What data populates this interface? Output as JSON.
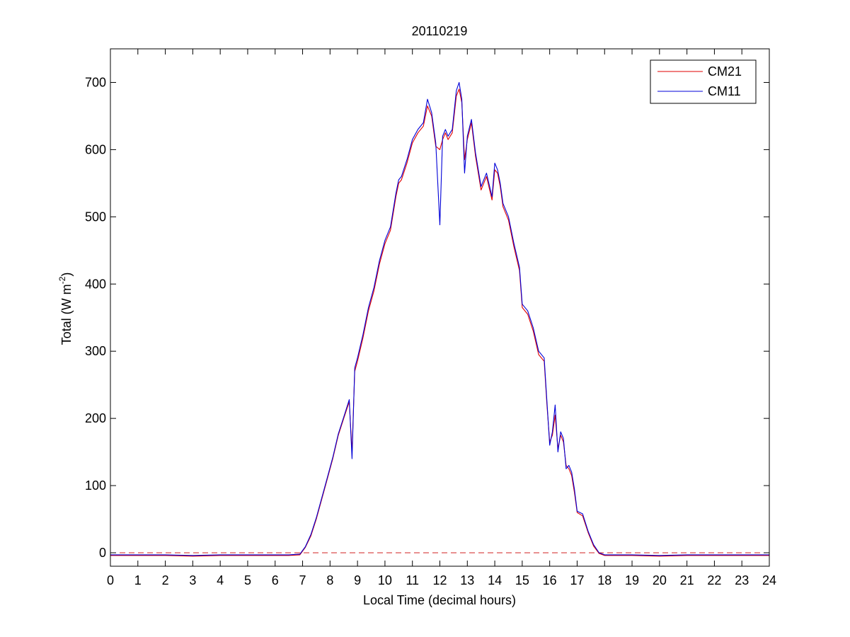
{
  "chart_data": {
    "type": "line",
    "title": "20110219",
    "xlabel": "Local Time (decimal hours)",
    "ylabel": "Total (W m^-2)",
    "ylabel_parts": {
      "main": "Total (W m",
      "exponent": "-2",
      "close": ")"
    },
    "xlim": [
      0,
      24
    ],
    "ylim": [
      -20,
      750
    ],
    "x_ticks": [
      0,
      1,
      2,
      3,
      4,
      5,
      6,
      7,
      8,
      9,
      10,
      11,
      12,
      13,
      14,
      15,
      16,
      17,
      18,
      19,
      20,
      21,
      22,
      23,
      24
    ],
    "y_ticks": [
      0,
      100,
      200,
      300,
      400,
      500,
      600,
      700
    ],
    "grid": false,
    "legend_position": "top-right",
    "reference_line": {
      "y": 0,
      "style": "dashed",
      "color": "#d02020"
    },
    "series": [
      {
        "name": "CM21",
        "color": "#e00000",
        "x": [
          0,
          1,
          2,
          3,
          4,
          5,
          6,
          6.5,
          6.9,
          7.1,
          7.3,
          7.5,
          7.7,
          7.9,
          8.1,
          8.3,
          8.5,
          8.7,
          8.8,
          8.9,
          9.0,
          9.2,
          9.4,
          9.6,
          9.8,
          10.0,
          10.2,
          10.4,
          10.5,
          10.6,
          10.8,
          11.0,
          11.2,
          11.4,
          11.55,
          11.7,
          11.85,
          12.0,
          12.1,
          12.2,
          12.3,
          12.45,
          12.6,
          12.7,
          12.8,
          12.9,
          13.0,
          13.15,
          13.3,
          13.5,
          13.7,
          13.9,
          14.0,
          14.1,
          14.2,
          14.3,
          14.5,
          14.7,
          14.9,
          15.0,
          15.2,
          15.4,
          15.6,
          15.8,
          15.9,
          16.0,
          16.1,
          16.2,
          16.3,
          16.4,
          16.5,
          16.6,
          16.7,
          16.8,
          16.9,
          17.0,
          17.2,
          17.4,
          17.6,
          17.8,
          18.0,
          18.5,
          19,
          20,
          21,
          22,
          23,
          24
        ],
        "y": [
          -4,
          -4,
          -4,
          -5,
          -4,
          -4,
          -4,
          -4,
          -3,
          8,
          25,
          50,
          80,
          110,
          140,
          175,
          200,
          225,
          150,
          270,
          285,
          320,
          360,
          390,
          430,
          460,
          480,
          530,
          550,
          555,
          580,
          610,
          625,
          635,
          665,
          650,
          605,
          600,
          615,
          625,
          615,
          625,
          680,
          690,
          670,
          585,
          615,
          640,
          590,
          540,
          560,
          525,
          570,
          565,
          545,
          515,
          495,
          455,
          420,
          365,
          355,
          330,
          295,
          285,
          220,
          165,
          175,
          205,
          155,
          175,
          165,
          130,
          125,
          115,
          90,
          60,
          55,
          30,
          10,
          -1,
          -4,
          -4,
          -4,
          -5,
          -4,
          -4,
          -4,
          -4
        ]
      },
      {
        "name": "CM11",
        "color": "#0000d8",
        "x": [
          0,
          1,
          2,
          3,
          4,
          5,
          6,
          6.5,
          6.9,
          7.1,
          7.3,
          7.5,
          7.7,
          7.9,
          8.1,
          8.3,
          8.5,
          8.7,
          8.8,
          8.9,
          9.0,
          9.2,
          9.4,
          9.6,
          9.8,
          10.0,
          10.2,
          10.4,
          10.5,
          10.6,
          10.8,
          11.0,
          11.2,
          11.4,
          11.55,
          11.7,
          11.85,
          12.0,
          12.1,
          12.2,
          12.3,
          12.45,
          12.6,
          12.7,
          12.8,
          12.9,
          13.0,
          13.15,
          13.3,
          13.5,
          13.7,
          13.9,
          14.0,
          14.1,
          14.2,
          14.3,
          14.5,
          14.7,
          14.9,
          15.0,
          15.2,
          15.4,
          15.6,
          15.8,
          15.9,
          16.0,
          16.1,
          16.2,
          16.3,
          16.4,
          16.5,
          16.6,
          16.7,
          16.8,
          16.9,
          17.0,
          17.2,
          17.4,
          17.6,
          17.8,
          18.0,
          18.5,
          19,
          20,
          21,
          22,
          23,
          24
        ],
        "y": [
          -3,
          -3,
          -3,
          -4,
          -3,
          -3,
          -3,
          -3,
          -2,
          9,
          27,
          52,
          82,
          112,
          142,
          177,
          202,
          228,
          140,
          275,
          290,
          325,
          365,
          395,
          435,
          465,
          485,
          535,
          555,
          560,
          585,
          615,
          630,
          640,
          675,
          655,
          610,
          488,
          620,
          630,
          620,
          630,
          688,
          700,
          675,
          565,
          620,
          645,
          595,
          545,
          565,
          530,
          580,
          570,
          550,
          520,
          500,
          460,
          425,
          370,
          360,
          335,
          300,
          290,
          225,
          160,
          180,
          220,
          150,
          180,
          170,
          125,
          130,
          120,
          95,
          62,
          58,
          32,
          12,
          0,
          -3,
          -3,
          -3,
          -4,
          -3,
          -3,
          -3,
          -3
        ]
      }
    ]
  }
}
